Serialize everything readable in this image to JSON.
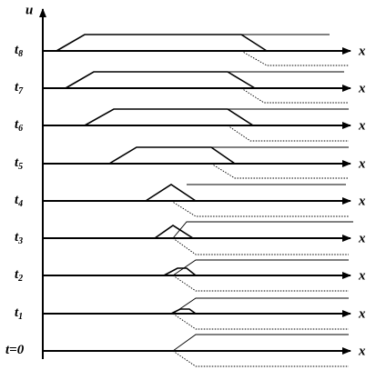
{
  "axis_label": "u",
  "rows": [
    {
      "label": "t",
      "sub": "8",
      "x_label": "x"
    },
    {
      "label": "t",
      "sub": "7",
      "x_label": "x"
    },
    {
      "label": "t",
      "sub": "6",
      "x_label": "x"
    },
    {
      "label": "t",
      "sub": "5",
      "x_label": "x"
    },
    {
      "label": "t",
      "sub": "4",
      "x_label": "x"
    },
    {
      "label": "t",
      "sub": "3",
      "x_label": "x"
    },
    {
      "label": "t",
      "sub": "2",
      "x_label": "x"
    },
    {
      "label": "t",
      "sub": "1",
      "x_label": "x"
    },
    {
      "label": "t=0",
      "x_label": "x"
    }
  ]
}
